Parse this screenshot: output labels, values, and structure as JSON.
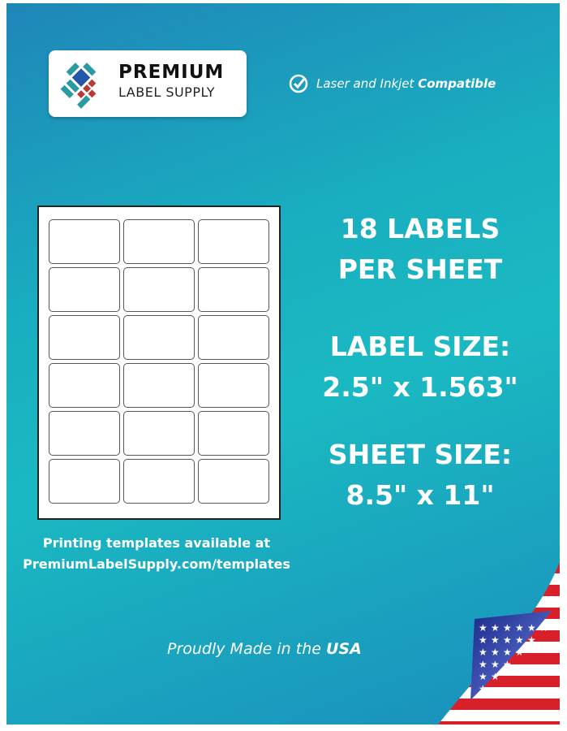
{
  "brand": {
    "name_line1": "PREMIUM",
    "name_line2": "LABEL SUPPLY"
  },
  "compat": {
    "text": "Laser and Inkjet ",
    "bold": "Compatible",
    "icon": "check-circle-icon"
  },
  "sheet": {
    "labels": 18,
    "columns": 3,
    "rows": 6
  },
  "headline": {
    "count_line1": "18 LABELS",
    "count_line2": "PER SHEET",
    "label_size_title": "LABEL SIZE:",
    "label_size_value": "2.5\"  x 1.563\"",
    "sheet_size_title": "SHEET SIZE:",
    "sheet_size_value": "8.5\" x 11\""
  },
  "templates": {
    "line1": "Printing templates available at",
    "line2": "PremiumLabelSupply.com/templates"
  },
  "footer": {
    "text": "Proudly Made in the ",
    "bold": "USA"
  },
  "colors": {
    "bg_top": "#1ab9c2",
    "bg_bottom": "#1f86b8",
    "logo_blue": "#2457a8",
    "logo_teal": "#2a9aa3",
    "logo_red": "#b83a32"
  }
}
